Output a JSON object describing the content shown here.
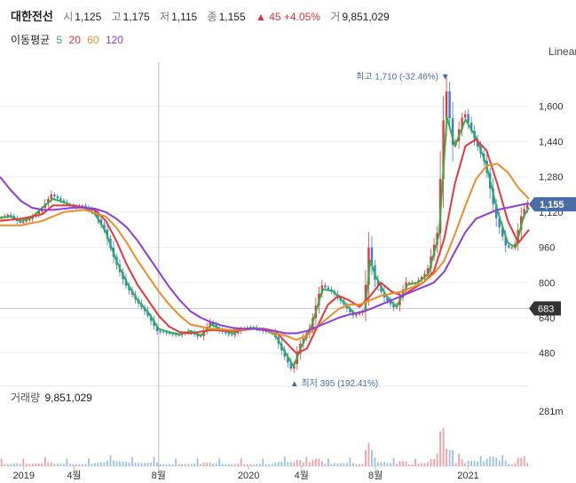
{
  "header": {
    "name": "대한전선",
    "open_label": "시",
    "open": "1,125",
    "high_label": "고",
    "high": "1,175",
    "low_label": "저",
    "low": "1,115",
    "close_label": "종",
    "close": "1,155",
    "change": "▲ 45 +4.05%",
    "volume_label": "거",
    "volume": "9,851,029"
  },
  "ma": {
    "label": "이동평균",
    "periods": [
      "5",
      "20",
      "60",
      "120"
    ],
    "colors": [
      "#2db34a",
      "#e8373e",
      "#f08c2a",
      "#8b3fe0"
    ]
  },
  "scale_mode": "Linear",
  "volume_panel": {
    "label": "거래량",
    "value": "9,851,029",
    "axis_tick": "281m"
  },
  "colors": {
    "up": "#e8373e",
    "down": "#3b7dd8",
    "accent": "#4a6da7",
    "ref_line": "#333333"
  },
  "chart_data": {
    "type": "line",
    "title": "",
    "xlabel": "",
    "ylabel": "",
    "y_scale": "linear",
    "ylim": [
      350,
      1760
    ],
    "y_ticks": [
      480,
      640,
      800,
      960,
      1120,
      1280,
      1440,
      1600
    ],
    "y_tick_labels": [
      "480",
      "640",
      "800",
      "960",
      "1,120",
      "1,280",
      "1,440",
      "1,600"
    ],
    "x_ticks": [
      {
        "t": 0.045,
        "label": "2019"
      },
      {
        "t": 0.14,
        "label": "4월"
      },
      {
        "t": 0.3,
        "label": "8월"
      },
      {
        "t": 0.47,
        "label": "2020"
      },
      {
        "t": 0.57,
        "label": "4월"
      },
      {
        "t": 0.71,
        "label": "8월"
      },
      {
        "t": 0.885,
        "label": "2021"
      }
    ],
    "last_price": {
      "value": 1155,
      "label": "1,155"
    },
    "ref_price": {
      "value": 683,
      "label": "683"
    },
    "max_annotation": {
      "t": 0.845,
      "value": 1710,
      "text": "최고 1,710 (-32.46%)"
    },
    "min_annotation": {
      "t": 0.555,
      "value": 395,
      "text": "최저 395 (192.41%)"
    },
    "crosshair_t": 0.3,
    "price_points": [
      [
        0.0,
        1090
      ],
      [
        0.02,
        1110
      ],
      [
        0.04,
        1070
      ],
      [
        0.06,
        1090
      ],
      [
        0.08,
        1130
      ],
      [
        0.1,
        1200
      ],
      [
        0.12,
        1170
      ],
      [
        0.14,
        1140
      ],
      [
        0.16,
        1150
      ],
      [
        0.18,
        1120
      ],
      [
        0.2,
        1040
      ],
      [
        0.22,
        900
      ],
      [
        0.24,
        790
      ],
      [
        0.26,
        720
      ],
      [
        0.28,
        660
      ],
      [
        0.3,
        580
      ],
      [
        0.32,
        570
      ],
      [
        0.34,
        560
      ],
      [
        0.36,
        580
      ],
      [
        0.38,
        550
      ],
      [
        0.4,
        620
      ],
      [
        0.42,
        580
      ],
      [
        0.44,
        560
      ],
      [
        0.46,
        590
      ],
      [
        0.48,
        600
      ],
      [
        0.5,
        580
      ],
      [
        0.52,
        570
      ],
      [
        0.54,
        470
      ],
      [
        0.555,
        400
      ],
      [
        0.57,
        520
      ],
      [
        0.59,
        600
      ],
      [
        0.61,
        790
      ],
      [
        0.63,
        760
      ],
      [
        0.65,
        710
      ],
      [
        0.67,
        650
      ],
      [
        0.69,
        670
      ],
      [
        0.7,
        960
      ],
      [
        0.71,
        820
      ],
      [
        0.73,
        730
      ],
      [
        0.75,
        680
      ],
      [
        0.77,
        800
      ],
      [
        0.79,
        800
      ],
      [
        0.81,
        850
      ],
      [
        0.83,
        1030
      ],
      [
        0.845,
        1710
      ],
      [
        0.86,
        1400
      ],
      [
        0.88,
        1580
      ],
      [
        0.9,
        1450
      ],
      [
        0.92,
        1340
      ],
      [
        0.94,
        1100
      ],
      [
        0.96,
        960
      ],
      [
        0.975,
        960
      ],
      [
        0.99,
        1120
      ],
      [
        1.0,
        1155
      ]
    ],
    "series": [
      {
        "name": "5",
        "values": [
          [
            0.0,
            1095
          ],
          [
            0.02,
            1100
          ],
          [
            0.04,
            1080
          ],
          [
            0.06,
            1095
          ],
          [
            0.08,
            1140
          ],
          [
            0.1,
            1180
          ],
          [
            0.12,
            1165
          ],
          [
            0.14,
            1145
          ],
          [
            0.16,
            1140
          ],
          [
            0.18,
            1110
          ],
          [
            0.2,
            1030
          ],
          [
            0.22,
            900
          ],
          [
            0.24,
            800
          ],
          [
            0.26,
            720
          ],
          [
            0.28,
            665
          ],
          [
            0.3,
            590
          ],
          [
            0.32,
            575
          ],
          [
            0.34,
            565
          ],
          [
            0.36,
            580
          ],
          [
            0.38,
            560
          ],
          [
            0.4,
            610
          ],
          [
            0.42,
            585
          ],
          [
            0.44,
            570
          ],
          [
            0.46,
            590
          ],
          [
            0.48,
            595
          ],
          [
            0.5,
            585
          ],
          [
            0.52,
            565
          ],
          [
            0.54,
            480
          ],
          [
            0.555,
            420
          ],
          [
            0.57,
            510
          ],
          [
            0.59,
            610
          ],
          [
            0.61,
            770
          ],
          [
            0.63,
            760
          ],
          [
            0.65,
            710
          ],
          [
            0.67,
            660
          ],
          [
            0.69,
            670
          ],
          [
            0.7,
            900
          ],
          [
            0.71,
            830
          ],
          [
            0.73,
            740
          ],
          [
            0.75,
            690
          ],
          [
            0.77,
            790
          ],
          [
            0.79,
            800
          ],
          [
            0.81,
            840
          ],
          [
            0.83,
            1020
          ],
          [
            0.845,
            1550
          ],
          [
            0.86,
            1420
          ],
          [
            0.88,
            1540
          ],
          [
            0.9,
            1460
          ],
          [
            0.92,
            1330
          ],
          [
            0.94,
            1130
          ],
          [
            0.96,
            980
          ],
          [
            0.975,
            960
          ],
          [
            0.99,
            1100
          ],
          [
            1.0,
            1140
          ]
        ]
      },
      {
        "name": "20",
        "values": [
          [
            0.0,
            1080
          ],
          [
            0.04,
            1090
          ],
          [
            0.08,
            1110
          ],
          [
            0.1,
            1150
          ],
          [
            0.14,
            1150
          ],
          [
            0.18,
            1130
          ],
          [
            0.2,
            1080
          ],
          [
            0.22,
            990
          ],
          [
            0.24,
            880
          ],
          [
            0.26,
            790
          ],
          [
            0.28,
            720
          ],
          [
            0.3,
            650
          ],
          [
            0.32,
            600
          ],
          [
            0.34,
            575
          ],
          [
            0.36,
            570
          ],
          [
            0.4,
            585
          ],
          [
            0.44,
            580
          ],
          [
            0.48,
            590
          ],
          [
            0.5,
            590
          ],
          [
            0.52,
            580
          ],
          [
            0.54,
            530
          ],
          [
            0.56,
            480
          ],
          [
            0.58,
            500
          ],
          [
            0.6,
            600
          ],
          [
            0.62,
            700
          ],
          [
            0.64,
            740
          ],
          [
            0.66,
            720
          ],
          [
            0.68,
            690
          ],
          [
            0.7,
            740
          ],
          [
            0.72,
            800
          ],
          [
            0.74,
            760
          ],
          [
            0.76,
            740
          ],
          [
            0.78,
            770
          ],
          [
            0.8,
            800
          ],
          [
            0.82,
            850
          ],
          [
            0.84,
            1000
          ],
          [
            0.86,
            1250
          ],
          [
            0.88,
            1420
          ],
          [
            0.9,
            1450
          ],
          [
            0.92,
            1400
          ],
          [
            0.94,
            1250
          ],
          [
            0.96,
            1080
          ],
          [
            0.98,
            980
          ],
          [
            1.0,
            1040
          ]
        ]
      },
      {
        "name": "60",
        "values": [
          [
            0.0,
            1060
          ],
          [
            0.04,
            1060
          ],
          [
            0.08,
            1080
          ],
          [
            0.12,
            1120
          ],
          [
            0.16,
            1130
          ],
          [
            0.2,
            1100
          ],
          [
            0.22,
            1050
          ],
          [
            0.24,
            980
          ],
          [
            0.26,
            900
          ],
          [
            0.28,
            830
          ],
          [
            0.3,
            760
          ],
          [
            0.32,
            700
          ],
          [
            0.34,
            650
          ],
          [
            0.36,
            610
          ],
          [
            0.4,
            590
          ],
          [
            0.44,
            585
          ],
          [
            0.48,
            590
          ],
          [
            0.5,
            585
          ],
          [
            0.52,
            570
          ],
          [
            0.54,
            560
          ],
          [
            0.56,
            540
          ],
          [
            0.58,
            560
          ],
          [
            0.6,
            600
          ],
          [
            0.62,
            640
          ],
          [
            0.64,
            680
          ],
          [
            0.66,
            700
          ],
          [
            0.68,
            700
          ],
          [
            0.7,
            720
          ],
          [
            0.72,
            740
          ],
          [
            0.74,
            750
          ],
          [
            0.76,
            760
          ],
          [
            0.78,
            780
          ],
          [
            0.8,
            800
          ],
          [
            0.82,
            840
          ],
          [
            0.84,
            900
          ],
          [
            0.86,
            1020
          ],
          [
            0.88,
            1150
          ],
          [
            0.9,
            1270
          ],
          [
            0.92,
            1330
          ],
          [
            0.94,
            1340
          ],
          [
            0.96,
            1300
          ],
          [
            0.98,
            1230
          ],
          [
            1.0,
            1180
          ]
        ]
      },
      {
        "name": "120",
        "values": [
          [
            0.0,
            1280
          ],
          [
            0.02,
            1220
          ],
          [
            0.04,
            1170
          ],
          [
            0.06,
            1140
          ],
          [
            0.08,
            1130
          ],
          [
            0.1,
            1130
          ],
          [
            0.12,
            1135
          ],
          [
            0.14,
            1140
          ],
          [
            0.16,
            1140
          ],
          [
            0.18,
            1135
          ],
          [
            0.2,
            1120
          ],
          [
            0.22,
            1090
          ],
          [
            0.24,
            1050
          ],
          [
            0.26,
            990
          ],
          [
            0.28,
            920
          ],
          [
            0.3,
            850
          ],
          [
            0.32,
            780
          ],
          [
            0.34,
            720
          ],
          [
            0.36,
            670
          ],
          [
            0.38,
            640
          ],
          [
            0.4,
            620
          ],
          [
            0.42,
            605
          ],
          [
            0.44,
            595
          ],
          [
            0.46,
            590
          ],
          [
            0.48,
            590
          ],
          [
            0.5,
            585
          ],
          [
            0.52,
            580
          ],
          [
            0.54,
            570
          ],
          [
            0.56,
            570
          ],
          [
            0.58,
            580
          ],
          [
            0.6,
            600
          ],
          [
            0.62,
            620
          ],
          [
            0.64,
            640
          ],
          [
            0.66,
            655
          ],
          [
            0.68,
            665
          ],
          [
            0.7,
            680
          ],
          [
            0.72,
            700
          ],
          [
            0.74,
            720
          ],
          [
            0.76,
            740
          ],
          [
            0.78,
            760
          ],
          [
            0.8,
            780
          ],
          [
            0.82,
            800
          ],
          [
            0.84,
            850
          ],
          [
            0.86,
            940
          ],
          [
            0.88,
            1030
          ],
          [
            0.9,
            1090
          ],
          [
            0.92,
            1110
          ],
          [
            0.94,
            1130
          ],
          [
            0.96,
            1140
          ],
          [
            0.98,
            1150
          ],
          [
            1.0,
            1160
          ]
        ]
      }
    ]
  }
}
